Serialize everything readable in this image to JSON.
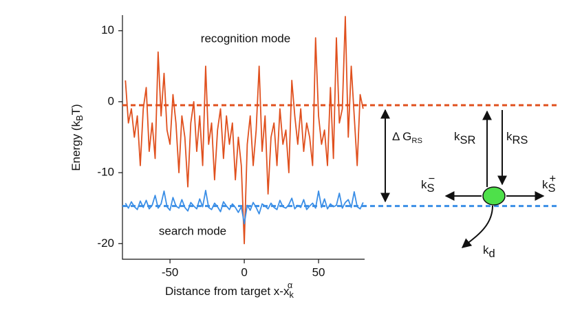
{
  "chart_data": {
    "type": "line",
    "xlabel": {
      "text": "Distance from target x-x",
      "sub": "k",
      "sup": "α"
    },
    "ylabel": {
      "text": "Energy (k",
      "sub": "B",
      "tail": "T)"
    },
    "annotations": [
      "recognition mode",
      "search mode"
    ],
    "xlim": [
      -82,
      81
    ],
    "ylim": [
      -22.2,
      12.2
    ],
    "xticks": [
      -50,
      0,
      50
    ],
    "yticks": [
      10,
      0,
      -10,
      -20
    ],
    "x": [
      -80,
      -78,
      -76,
      -74,
      -72,
      -70,
      -68,
      -66,
      -64,
      -62,
      -60,
      -58,
      -56,
      -54,
      -52,
      -50,
      -48,
      -46,
      -44,
      -42,
      -40,
      -38,
      -36,
      -34,
      -32,
      -30,
      -28,
      -26,
      -24,
      -22,
      -20,
      -18,
      -16,
      -14,
      -12,
      -10,
      -8,
      -6,
      -4,
      -2,
      0,
      2,
      4,
      6,
      8,
      10,
      12,
      14,
      16,
      18,
      20,
      22,
      24,
      26,
      28,
      30,
      32,
      34,
      36,
      38,
      40,
      42,
      44,
      46,
      48,
      50,
      52,
      54,
      56,
      58,
      60,
      62,
      64,
      66,
      68,
      70,
      72,
      74,
      76,
      78,
      80
    ],
    "series": [
      {
        "color": "#e0501e",
        "values": [
          3,
          -3,
          -1,
          -5,
          -2,
          -9,
          -1,
          2,
          -7,
          -3,
          -8,
          7,
          -2,
          4,
          -4,
          -6,
          1,
          -3,
          -10,
          -2,
          -5,
          -12,
          -3,
          0,
          -7,
          -2,
          -9,
          5,
          -6,
          -3,
          -11,
          -4,
          -1,
          -8,
          -2,
          -6,
          -3,
          -11,
          -5,
          -9,
          -20,
          -6,
          -2,
          -9,
          -4,
          5,
          -7,
          -2,
          -13,
          -5,
          -3,
          -9,
          -1,
          -6,
          -4,
          -10,
          3,
          -2,
          -6,
          -1,
          -7,
          -3,
          -5,
          -9,
          9,
          -2,
          -6,
          -4,
          -9,
          2,
          -8,
          9,
          -3,
          -1,
          12,
          -5,
          5,
          -2,
          -9,
          1,
          -1
        ]
      },
      {
        "color": "#3a8ee6",
        "values": [
          -14.3,
          -15,
          -14.1,
          -14.8,
          -15.2,
          -14,
          -14.9,
          -13.9,
          -15.1,
          -14.6,
          -13.2,
          -15,
          -14.4,
          -12.6,
          -14.8,
          -15.3,
          -13.5,
          -14.7,
          -15,
          -13.8,
          -14.9,
          -15.4,
          -14.2,
          -14.7,
          -15.1,
          -13.7,
          -14.8,
          -12.5,
          -14.9,
          -15.2,
          -14.3,
          -14.8,
          -15.5,
          -14.1,
          -14.7,
          -15.2,
          -14.4,
          -14.9,
          -15.6,
          -14.8,
          -17.2,
          -14.6,
          -15.3,
          -14.2,
          -14.9,
          -15.8,
          -14.4,
          -14.7,
          -15.1,
          -14.3,
          -14.9,
          -15.2,
          -13.9,
          -14.8,
          -15,
          -14.5,
          -13.6,
          -15.1,
          -14.6,
          -14.9,
          -13.8,
          -15.2,
          -14.7,
          -14.3,
          -15,
          -12.6,
          -14.9,
          -13.7,
          -15.1,
          -14.4,
          -14.8,
          -14.6,
          -12.9,
          -15,
          -14.2,
          -13.8,
          -14.9,
          -12.7,
          -14.8,
          -15.1,
          -14.2
        ]
      }
    ],
    "reference_lines": [
      {
        "value": -0.5,
        "color": "#e0501e"
      },
      {
        "value": -14.7,
        "color": "#3a8ee6"
      }
    ],
    "diagram": {
      "delta_g": {
        "text": "Δ G",
        "sub": "RS"
      },
      "k_sr": {
        "text": "k",
        "sub": "SR"
      },
      "k_rs": {
        "text": "k",
        "sub": "RS"
      },
      "k_s_minus": {
        "text": "k",
        "sub": "S",
        "sup": "−"
      },
      "k_s_plus": {
        "text": "k",
        "sub": "S",
        "sup": "+"
      },
      "k_d": {
        "text": "k",
        "sub": "d"
      },
      "state_color": "#4ee04a"
    }
  }
}
